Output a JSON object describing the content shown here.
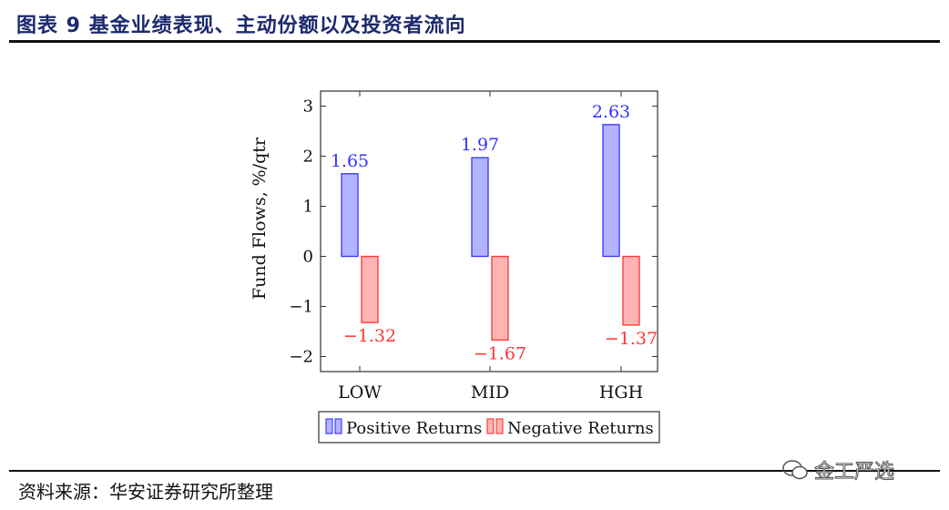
{
  "header": {
    "title": "图表 9 基金业绩表现、主动份额以及投资者流向"
  },
  "footer": {
    "source": "资料来源：华安证券研究所整理"
  },
  "watermark": {
    "text": "金工严选",
    "icon": "wechat-icon"
  },
  "chart_data": {
    "type": "bar",
    "categories": [
      "LOW",
      "MID",
      "HGH"
    ],
    "series": [
      {
        "name": "Positive Returns",
        "values": [
          1.65,
          1.97,
          2.63
        ],
        "color": "#3333ff",
        "fill": "#b3b3ff"
      },
      {
        "name": "Negative Returns",
        "values": [
          -1.32,
          -1.67,
          -1.37
        ],
        "color": "#ff3333",
        "fill": "#ffb3b3"
      }
    ],
    "value_labels": {
      "positive": [
        "1.65",
        "1.97",
        "2.63"
      ],
      "negative": [
        "−1.32",
        "−1.67",
        "−1.37"
      ]
    },
    "ylabel": "Fund Flows, %/qtr",
    "xlabel": "",
    "ylim": [
      -2.3,
      3.3
    ],
    "yticks": [
      3,
      2,
      1,
      0,
      -1,
      -2
    ],
    "ytick_labels": [
      "3",
      "2",
      "1",
      "0",
      "−1",
      "−2"
    ],
    "legend_position": "bottom"
  }
}
